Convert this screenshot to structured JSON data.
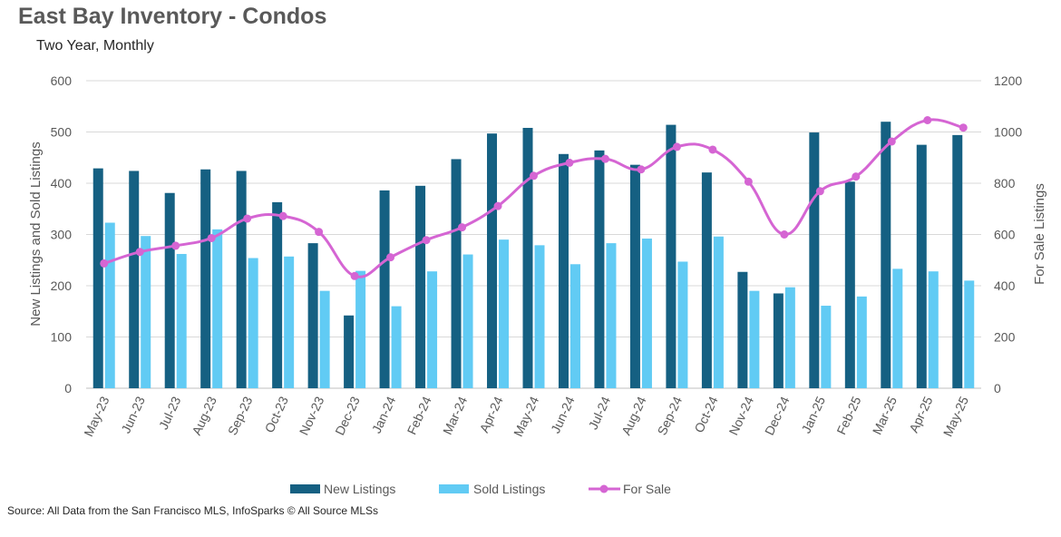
{
  "chart_data": {
    "type": "bar",
    "title": "East Bay Inventory - Condos",
    "subtitle": "Two Year, Monthly",
    "source": "Source: All Data from the San Francisco MLS, InfoSparks © All Source MLSs",
    "categories": [
      "May-23",
      "Jun-23",
      "Jul-23",
      "Aug-23",
      "Sep-23",
      "Oct-23",
      "Nov-23",
      "Dec-23",
      "Jan-24",
      "Feb-24",
      "Mar-24",
      "Apr-24",
      "May-24",
      "Jun-24",
      "Jul-24",
      "Aug-24",
      "Sep-24",
      "Oct-24",
      "Nov-24",
      "Dec-24",
      "Jan-25",
      "Feb-25",
      "Mar-25",
      "Apr-25",
      "May-25"
    ],
    "ylabel_left": "New Listings and Sold Listings",
    "ylabel_right": "For Sale Listings",
    "ylim_left": [
      0,
      600
    ],
    "ylim_right": [
      0,
      1200
    ],
    "yticks_left": [
      "0",
      "100",
      "200",
      "300",
      "400",
      "500",
      "600"
    ],
    "yticks_right": [
      "0",
      "200",
      "400",
      "600",
      "800",
      "1000",
      "1200"
    ],
    "grid": true,
    "legend_position": "bottom",
    "series": [
      {
        "name": "New Listings",
        "kind": "bar",
        "axis": "left",
        "color": "#156082",
        "values": [
          429,
          424,
          381,
          427,
          424,
          363,
          283,
          142,
          386,
          395,
          447,
          497,
          508,
          457,
          464,
          436,
          514,
          421,
          227,
          185,
          499,
          403,
          520,
          475,
          494
        ]
      },
      {
        "name": "Sold Listings",
        "kind": "bar",
        "axis": "left",
        "color": "#61CBF4",
        "values": [
          323,
          297,
          262,
          310,
          254,
          257,
          190,
          229,
          160,
          228,
          261,
          290,
          279,
          242,
          283,
          292,
          247,
          296,
          190,
          197,
          161,
          179,
          233,
          228,
          210
        ]
      },
      {
        "name": "For Sale",
        "kind": "line",
        "axis": "right",
        "color": "#D565D3",
        "smooth": true,
        "values": [
          487,
          532,
          556,
          586,
          662,
          672,
          610,
          438,
          511,
          578,
          628,
          711,
          829,
          880,
          895,
          854,
          942,
          931,
          806,
          600,
          769,
          826,
          963,
          1046,
          1017
        ]
      }
    ]
  }
}
